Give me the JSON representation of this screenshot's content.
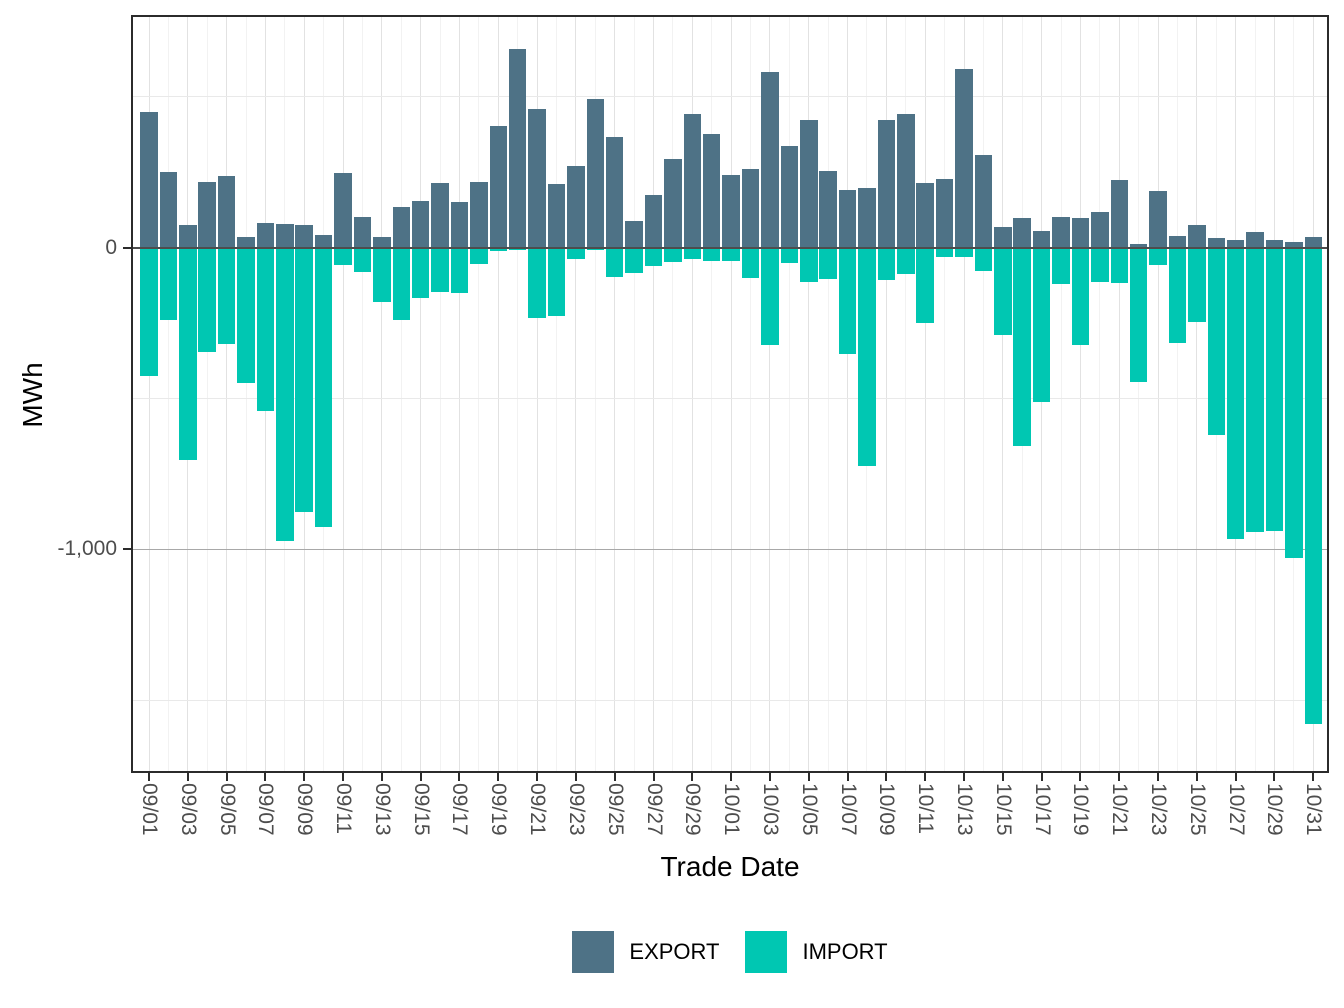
{
  "y_axis": {
    "title": "MWh",
    "ticks": [
      {
        "label": "0",
        "value": 0
      },
      {
        "label": "-1,000",
        "value": -1000
      }
    ]
  },
  "x_axis": {
    "title": "Trade Date",
    "label_every": 2
  },
  "legend": {
    "position": "bottom",
    "items": [
      {
        "label": "EXPORT",
        "color": "#4E7286"
      },
      {
        "label": "IMPORT",
        "color": "#00C7B2"
      }
    ]
  },
  "chart_data": {
    "type": "bar",
    "title": "",
    "xlabel": "Trade Date",
    "ylabel": "MWh",
    "ylim": [
      -1740,
      775
    ],
    "grid": {
      "h_major": [
        0,
        -1000
      ],
      "h_minor": [
        500,
        -500,
        -1500
      ]
    },
    "legend_position": "bottom",
    "categories": [
      "09/01",
      "09/02",
      "09/03",
      "09/04",
      "09/05",
      "09/06",
      "09/07",
      "09/08",
      "09/09",
      "09/10",
      "09/11",
      "09/12",
      "09/13",
      "09/14",
      "09/15",
      "09/16",
      "09/17",
      "09/18",
      "09/19",
      "09/20",
      "09/21",
      "09/22",
      "09/23",
      "09/24",
      "09/25",
      "09/26",
      "09/27",
      "09/28",
      "09/29",
      "09/30",
      "10/01",
      "10/02",
      "10/03",
      "10/04",
      "10/05",
      "10/06",
      "10/07",
      "10/08",
      "10/09",
      "10/10",
      "10/11",
      "10/12",
      "10/13",
      "10/14",
      "10/15",
      "10/16",
      "10/17",
      "10/18",
      "10/19",
      "10/20",
      "10/21",
      "10/22",
      "10/23",
      "10/24",
      "10/25",
      "10/26",
      "10/27",
      "10/28",
      "10/29",
      "10/30",
      "10/31"
    ],
    "series": [
      {
        "name": "EXPORT",
        "color": "#4E7286",
        "values": [
          450,
          250,
          76,
          217,
          238,
          35,
          82,
          79,
          76,
          43,
          246,
          100,
          36,
          135,
          154,
          214,
          151,
          219,
          404,
          659,
          458,
          211,
          270,
          492,
          367,
          87,
          176,
          295,
          444,
          377,
          240,
          262,
          581,
          337,
          423,
          255,
          192,
          197,
          423,
          442,
          213,
          226,
          591,
          306,
          67,
          98,
          56,
          100,
          98,
          119,
          225,
          13,
          187,
          40,
          76,
          32,
          24,
          52,
          24,
          17,
          36
        ]
      },
      {
        "name": "IMPORT",
        "color": "#00C7B2",
        "values": [
          -425,
          -240,
          -705,
          -345,
          -320,
          -450,
          -541,
          -972,
          -878,
          -926,
          -59,
          -82,
          -182,
          -241,
          -167,
          -146,
          -151,
          -55,
          -12,
          -7,
          -233,
          -227,
          -37,
          -8,
          -96,
          -83,
          -60,
          -48,
          -39,
          -44,
          -44,
          -100,
          -324,
          -50,
          -113,
          -103,
          -352,
          -723,
          -108,
          -87,
          -251,
          -31,
          -32,
          -76,
          -290,
          -658,
          -512,
          -122,
          -322,
          -114,
          -119,
          -444,
          -59,
          -317,
          -246,
          -623,
          -967,
          -944,
          -941,
          -1030,
          -1578
        ]
      }
    ]
  }
}
